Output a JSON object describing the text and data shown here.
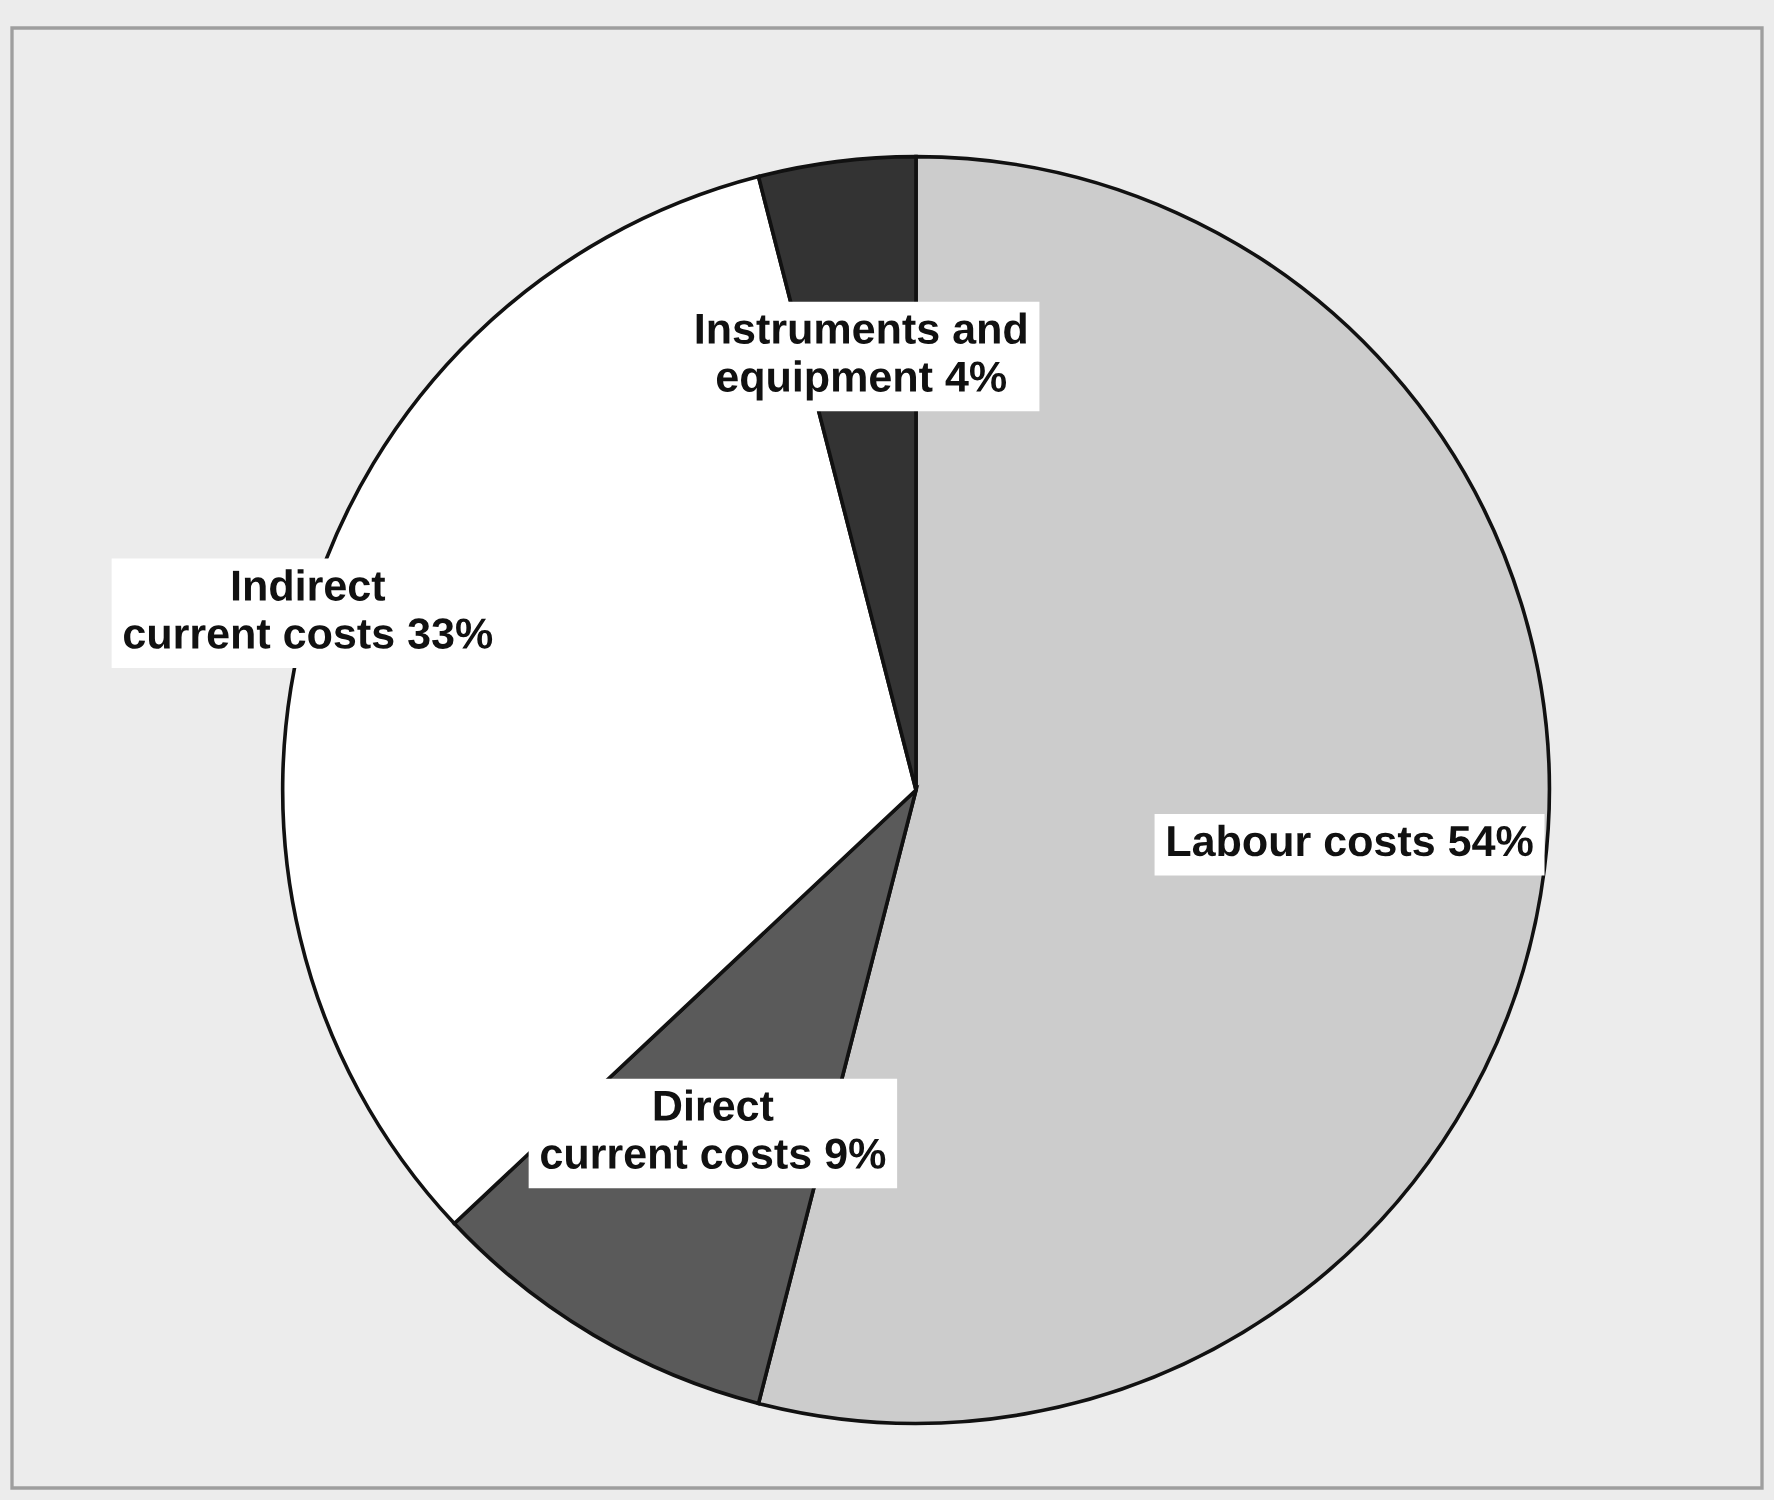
{
  "chart_data": {
    "type": "pie",
    "categories": [
      "Labour costs",
      "Direct\ncurrent costs",
      "Indirect\ncurrent costs",
      "Instruments and\nequipment"
    ],
    "values": [
      54,
      9,
      33,
      4
    ],
    "value_labels": [
      "54%",
      "9%",
      "33%",
      "4%"
    ],
    "colors": [
      "#cccccc",
      "#5a5a5a",
      "#ffffff",
      "#333333"
    ]
  }
}
